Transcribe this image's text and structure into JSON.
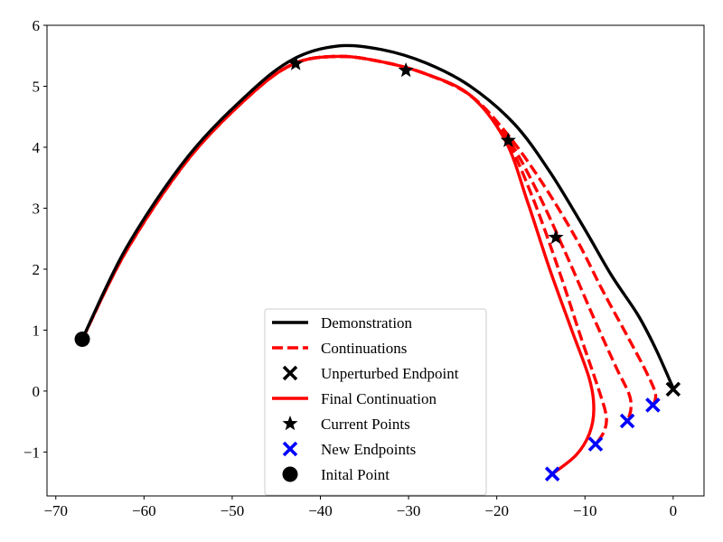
{
  "chart_data": {
    "type": "line",
    "title": "",
    "xlabel": "",
    "ylabel": "",
    "xlim": [
      -71,
      3.5
    ],
    "ylim": [
      -1.72,
      6.0
    ],
    "xticks": [
      -70,
      -60,
      -50,
      -40,
      -30,
      -20,
      -10,
      0
    ],
    "yticks": [
      -1,
      0,
      1,
      2,
      3,
      4,
      5,
      6
    ],
    "xtick_labels": [
      "−70",
      "−60",
      "−50",
      "−40",
      "−30",
      "−20",
      "−10",
      "0"
    ],
    "ytick_labels": [
      "−1",
      "0",
      "1",
      "2",
      "3",
      "4",
      "5",
      "6"
    ],
    "grid": false,
    "legend_position": "bottom-center",
    "legend": [
      {
        "label": "Demonstration",
        "style": "solid",
        "color": "#000000",
        "marker": "none"
      },
      {
        "label": "Continuations",
        "style": "dashed",
        "color": "#ff0000",
        "marker": "none"
      },
      {
        "label": "Unperturbed Endpoint",
        "style": "marker",
        "color": "#000000",
        "marker": "x"
      },
      {
        "label": "Final Continuation",
        "style": "solid",
        "color": "#ff0000",
        "marker": "none"
      },
      {
        "label": "Current Points",
        "style": "marker",
        "color": "#000000",
        "marker": "star"
      },
      {
        "label": "New Endpoints",
        "style": "marker",
        "color": "#0000ff",
        "marker": "x"
      },
      {
        "label": "Inital Point",
        "style": "marker",
        "color": "#000000",
        "marker": "circle"
      }
    ],
    "series": [
      {
        "name": "Demonstration",
        "color": "#000000",
        "style": "solid",
        "x": [
          -67,
          -62,
          -55,
          -48,
          -43,
          -38,
          -33,
          -28,
          -23,
          -18,
          -14,
          -10,
          -7,
          -4,
          -2,
          0
        ],
        "y": [
          0.85,
          2.35,
          3.85,
          4.9,
          5.45,
          5.66,
          5.6,
          5.38,
          5.0,
          4.38,
          3.6,
          2.65,
          1.9,
          1.25,
          0.7,
          0.05
        ]
      },
      {
        "name": "Continuations",
        "color": "#ff0000",
        "style": "dashed",
        "x": [
          -67,
          -62,
          -55,
          -48,
          -43,
          -38,
          -33,
          -28,
          -23,
          -19,
          -15,
          -11,
          -8,
          -5,
          -3,
          -2,
          -2.3
        ],
        "y": [
          0.85,
          2.3,
          3.8,
          4.85,
          5.37,
          5.49,
          5.4,
          5.2,
          4.85,
          4.25,
          3.45,
          2.5,
          1.65,
          0.85,
          0.3,
          -0.05,
          -0.25
        ]
      },
      {
        "name": "Continuations",
        "color": "#ff0000",
        "style": "dashed",
        "x": [
          -67,
          -62,
          -55,
          -48,
          -43,
          -38,
          -33,
          -28,
          -23,
          -19,
          -15.5,
          -12,
          -9,
          -6.5,
          -5,
          -4.8,
          -5.2
        ],
        "y": [
          0.85,
          2.3,
          3.8,
          4.85,
          5.37,
          5.49,
          5.4,
          5.2,
          4.85,
          4.2,
          3.3,
          2.2,
          1.2,
          0.4,
          -0.05,
          -0.3,
          -0.5
        ]
      },
      {
        "name": "Continuations",
        "color": "#ff0000",
        "style": "dashed",
        "x": [
          -67,
          -62,
          -55,
          -48,
          -43,
          -38,
          -33,
          -28,
          -23,
          -19,
          -16,
          -13,
          -10.5,
          -8.5,
          -7.6,
          -7.8,
          -8.8
        ],
        "y": [
          0.85,
          2.3,
          3.8,
          4.85,
          5.37,
          5.49,
          5.4,
          5.2,
          4.85,
          4.15,
          3.2,
          2.0,
          0.9,
          0.05,
          -0.4,
          -0.65,
          -0.88
        ]
      },
      {
        "name": "Final Continuation",
        "color": "#ff0000",
        "style": "solid",
        "x": [
          -67,
          -62,
          -55,
          -48,
          -43,
          -38,
          -33,
          -28,
          -23,
          -19,
          -16.5,
          -14,
          -11.5,
          -9.5,
          -9,
          -9.5,
          -11,
          -13.7
        ],
        "y": [
          0.85,
          2.3,
          3.8,
          4.85,
          5.37,
          5.49,
          5.4,
          5.2,
          4.85,
          4.1,
          3.1,
          2.0,
          1.0,
          0.2,
          -0.3,
          -0.7,
          -1.05,
          -1.36
        ]
      }
    ],
    "current_points": {
      "x": [
        -42.8,
        -30.3,
        -18.7,
        -13.3
      ],
      "y": [
        5.37,
        5.26,
        4.11,
        2.52
      ]
    },
    "unperturbed_endpoint": {
      "x": 0,
      "y": 0.03
    },
    "new_endpoints": {
      "x": [
        -2.3,
        -5.2,
        -8.8,
        -13.7
      ],
      "y": [
        -0.23,
        -0.49,
        -0.87,
        -1.36
      ]
    },
    "initial_point": {
      "x": -67,
      "y": 0.85
    }
  }
}
